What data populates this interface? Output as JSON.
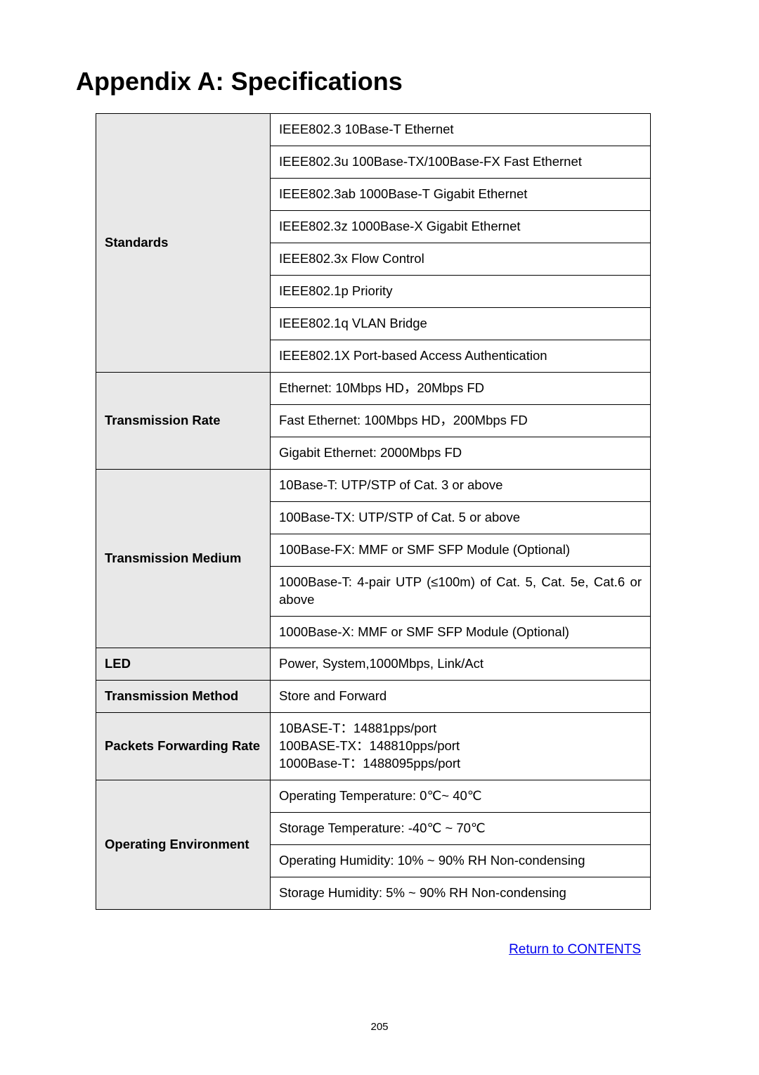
{
  "title": "Appendix A: Specifications",
  "table": {
    "label_bg": "#e8e8e8",
    "value_bg": "#ffffff",
    "border_color": "#000000",
    "font_size": 18.5,
    "groups": [
      {
        "label": "Standards",
        "rows": [
          "IEEE802.3 10Base-T Ethernet",
          "IEEE802.3u 100Base-TX/100Base-FX Fast Ethernet",
          "IEEE802.3ab 1000Base-T Gigabit Ethernet",
          "IEEE802.3z 1000Base-X Gigabit Ethernet",
          "IEEE802.3x Flow Control",
          "IEEE802.1p Priority",
          "IEEE802.1q VLAN Bridge",
          "IEEE802.1X Port-based Access Authentication"
        ]
      },
      {
        "label": "Transmission Rate",
        "rows": [
          "Ethernet: 10Mbps HD，20Mbps FD",
          "Fast Ethernet: 100Mbps HD，200Mbps FD",
          "Gigabit Ethernet: 2000Mbps FD"
        ]
      },
      {
        "label": "Transmission Medium",
        "rows": [
          "10Base-T: UTP/STP of Cat. 3 or above",
          "100Base-TX: UTP/STP of Cat. 5 or above",
          "100Base-FX: MMF or SMF SFP Module (Optional)",
          "1000Base-T: 4-pair UTP (≤100m) of Cat. 5, Cat. 5e, Cat.6 or above",
          "1000Base-X: MMF or SMF SFP Module (Optional)"
        ]
      },
      {
        "label": "LED",
        "rows": [
          "Power, System,1000Mbps, Link/Act"
        ]
      },
      {
        "label": "Transmission Method",
        "rows": [
          "Store and Forward"
        ]
      },
      {
        "label": "Packets Forwarding Rate",
        "rows": [
          "10BASE-T：14881pps/port\n100BASE-TX：148810pps/port\n1000Base-T：1488095pps/port"
        ]
      },
      {
        "label": "Operating Environment",
        "rows": [
          "Operating Temperature: 0℃~ 40℃",
          "Storage Temperature: -40℃ ~ 70℃",
          "Operating Humidity: 10% ~ 90% RH Non-condensing",
          "Storage Humidity: 5% ~ 90% RH Non-condensing"
        ]
      }
    ]
  },
  "return_link": "Return to CONTENTS",
  "return_link_color": "#0000ee",
  "page_number": "205"
}
